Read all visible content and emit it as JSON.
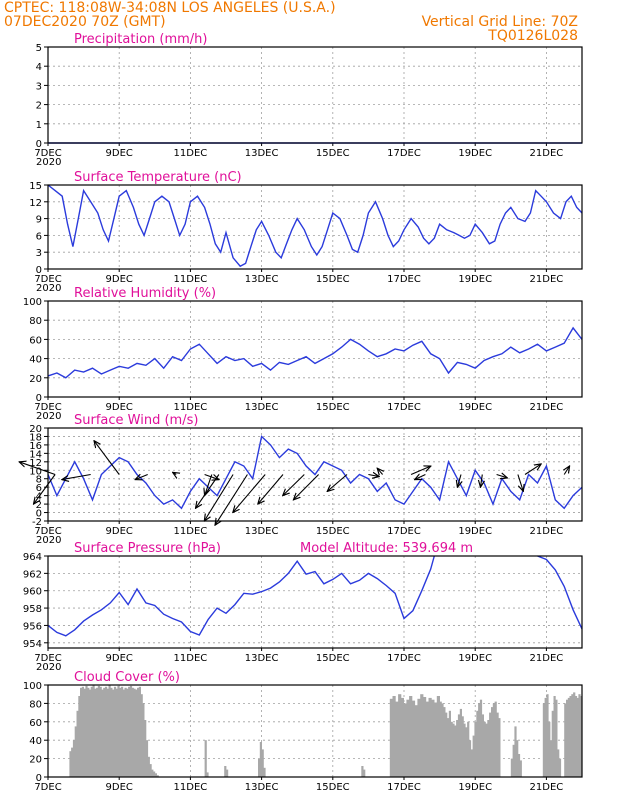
{
  "header": {
    "left_line1": "CPTEC:   118:08W-34:08N  LOS ANGELES (U.S.A.)",
    "left_line2": "07DEC2020 70Z (GMT)",
    "right_line1": "Vertical Grid Line: 70Z",
    "right_line2": "TQ0126L028"
  },
  "colors": {
    "header": "#f07800",
    "title": "#e0109a",
    "line": "#2b3bdc",
    "bar": "#a8a8a8",
    "arrow": "#000000"
  },
  "x_axis": {
    "day_start": 7,
    "day_end": 22,
    "tick_days": [
      7,
      9,
      11,
      13,
      15,
      17,
      19,
      21
    ],
    "tick_labels": [
      "7DEC",
      "9DEC",
      "11DEC",
      "13DEC",
      "15DEC",
      "17DEC",
      "19DEC",
      "21DEC"
    ],
    "year_label": "2020"
  },
  "chart_data": [
    {
      "id": "precip",
      "type": "line",
      "title": "Precipitation (mm/h)",
      "ylim": [
        0,
        5
      ],
      "yticks": [
        0,
        1,
        2,
        3,
        4,
        5
      ],
      "grid": true,
      "series": [
        {
          "x": [
            7,
            22
          ],
          "y": [
            0,
            0
          ]
        }
      ]
    },
    {
      "id": "temp",
      "type": "line",
      "title": "Surface Temperature (nC)",
      "ylim": [
        0,
        15
      ],
      "yticks": [
        0,
        3,
        6,
        9,
        12,
        15
      ],
      "grid": true,
      "series": [
        {
          "x": [
            7.0,
            7.2,
            7.4,
            7.55,
            7.7,
            7.85,
            8.0,
            8.2,
            8.4,
            8.55,
            8.7,
            8.85,
            9.0,
            9.2,
            9.4,
            9.55,
            9.7,
            9.85,
            10.0,
            10.2,
            10.4,
            10.55,
            10.7,
            10.85,
            11.0,
            11.2,
            11.4,
            11.55,
            11.7,
            11.85,
            12.0,
            12.2,
            12.4,
            12.55,
            12.7,
            12.85,
            13.0,
            13.2,
            13.4,
            13.55,
            13.7,
            13.85,
            14.0,
            14.2,
            14.4,
            14.55,
            14.7,
            14.85,
            15.0,
            15.2,
            15.4,
            15.55,
            15.7,
            15.85,
            16.0,
            16.2,
            16.4,
            16.55,
            16.7,
            16.85,
            17.0,
            17.2,
            17.4,
            17.55,
            17.7,
            17.85,
            18.0,
            18.2,
            18.4,
            18.55,
            18.7,
            18.85,
            19.0,
            19.2,
            19.4,
            19.55,
            19.7,
            19.85,
            20.0,
            20.2,
            20.4,
            20.55,
            20.7,
            20.85,
            21.0,
            21.2,
            21.4,
            21.55,
            21.7,
            21.85,
            22.0
          ],
          "y": [
            15,
            14,
            13,
            8,
            4,
            9,
            14,
            12,
            10,
            7,
            5,
            9,
            13,
            14,
            11,
            8,
            6,
            9,
            12,
            13,
            12,
            9,
            6,
            8,
            12,
            13,
            11,
            8,
            4.5,
            3,
            6.5,
            2,
            0.5,
            1,
            4,
            7,
            8.5,
            6,
            3,
            2,
            4.5,
            7,
            9,
            7,
            4,
            2.5,
            4,
            7,
            10,
            9,
            6,
            3.5,
            3,
            6,
            10,
            12,
            9,
            6,
            4,
            5,
            7,
            9,
            7.5,
            5.5,
            4.5,
            5.5,
            8,
            7,
            6.5,
            6,
            5.5,
            6,
            8,
            6.5,
            4.5,
            5,
            8,
            10,
            11,
            9,
            8.5,
            10,
            14,
            13,
            12,
            10,
            9,
            12,
            13,
            11,
            10
          ]
        }
      ]
    },
    {
      "id": "rh",
      "type": "line",
      "title": "Relative Humidity (%)",
      "ylim": [
        0,
        100
      ],
      "yticks": [
        0,
        20,
        40,
        60,
        80,
        100
      ],
      "grid": true,
      "series": [
        {
          "x": [
            7.0,
            7.25,
            7.5,
            7.75,
            8.0,
            8.25,
            8.5,
            8.75,
            9.0,
            9.25,
            9.5,
            9.75,
            10.0,
            10.25,
            10.5,
            10.75,
            11.0,
            11.25,
            11.5,
            11.75,
            12.0,
            12.25,
            12.5,
            12.75,
            13.0,
            13.25,
            13.5,
            13.75,
            14.0,
            14.25,
            14.5,
            14.75,
            15.0,
            15.25,
            15.5,
            15.75,
            16.0,
            16.25,
            16.5,
            16.75,
            17.0,
            17.25,
            17.5,
            17.75,
            18.0,
            18.25,
            18.5,
            18.75,
            19.0,
            19.25,
            19.5,
            19.75,
            20.0,
            20.25,
            20.5,
            20.75,
            21.0,
            21.25,
            21.5,
            21.75,
            22.0
          ],
          "y": [
            22,
            25,
            20,
            28,
            26,
            30,
            24,
            28,
            32,
            30,
            35,
            33,
            40,
            30,
            42,
            38,
            50,
            55,
            45,
            35,
            42,
            38,
            40,
            32,
            35,
            28,
            36,
            34,
            38,
            42,
            35,
            40,
            45,
            52,
            60,
            55,
            48,
            42,
            45,
            50,
            48,
            54,
            58,
            45,
            40,
            25,
            36,
            34,
            30,
            38,
            42,
            45,
            52,
            46,
            50,
            55,
            48,
            52,
            56,
            72,
            60
          ]
        }
      ]
    },
    {
      "id": "wind",
      "type": "line",
      "title": "Surface Wind (m/s)",
      "ylim": [
        -2,
        20
      ],
      "yticks": [
        -2,
        0,
        2,
        4,
        6,
        8,
        10,
        12,
        14,
        16,
        18,
        20
      ],
      "grid": true,
      "series": [
        {
          "x": [
            7.0,
            7.25,
            7.5,
            7.75,
            8.0,
            8.25,
            8.5,
            8.75,
            9.0,
            9.25,
            9.5,
            9.75,
            10.0,
            10.25,
            10.5,
            10.75,
            11.0,
            11.25,
            11.5,
            11.75,
            12.0,
            12.25,
            12.5,
            12.75,
            13.0,
            13.25,
            13.5,
            13.75,
            14.0,
            14.25,
            14.5,
            14.75,
            15.0,
            15.25,
            15.5,
            15.75,
            16.0,
            16.25,
            16.5,
            16.75,
            17.0,
            17.25,
            17.5,
            17.75,
            18.0,
            18.25,
            18.5,
            18.75,
            19.0,
            19.25,
            19.5,
            19.75,
            20.0,
            20.25,
            20.5,
            20.75,
            21.0,
            21.25,
            21.5,
            21.75,
            22.0
          ],
          "y": [
            9,
            4,
            8,
            12,
            8,
            3,
            9,
            11,
            13,
            12,
            9,
            7,
            4,
            2,
            3,
            1,
            5,
            8,
            6,
            4,
            8,
            12,
            11,
            8,
            18,
            16,
            13,
            15,
            14,
            11,
            9,
            12,
            11,
            10,
            7,
            9,
            8,
            5,
            7,
            3,
            2,
            5,
            8,
            6,
            3,
            12,
            8,
            4,
            10,
            7,
            2,
            8,
            5,
            3,
            9,
            7,
            11,
            3,
            1,
            4,
            6
          ]
        }
      ],
      "wind_vectors": [
        {
          "x": 7.2,
          "u": -1.2,
          "v": -7
        },
        {
          "x": 7.2,
          "u": -2,
          "v": 3
        },
        {
          "x": 8.2,
          "u": -1.6,
          "v": -1.2
        },
        {
          "x": 9.0,
          "u": -1.4,
          "v": 8
        },
        {
          "x": 9.8,
          "u": -0.7,
          "v": -1.2
        },
        {
          "x": 10.6,
          "u": -0.2,
          "v": 0.5
        },
        {
          "x": 11.4,
          "u": 0.8,
          "v": -1.2
        },
        {
          "x": 11.6,
          "u": -0.4,
          "v": -5
        },
        {
          "x": 11.8,
          "u": -1.3,
          "v": -8
        },
        {
          "x": 12.2,
          "u": -1.6,
          "v": -11
        },
        {
          "x": 12.6,
          "u": -1.8,
          "v": -12
        },
        {
          "x": 13.1,
          "u": -1.8,
          "v": -9
        },
        {
          "x": 13.6,
          "u": -1.4,
          "v": -7
        },
        {
          "x": 14.2,
          "u": -1.2,
          "v": -5
        },
        {
          "x": 14.6,
          "u": -1.4,
          "v": -6
        },
        {
          "x": 15.4,
          "u": -1.1,
          "v": -4
        },
        {
          "x": 16.0,
          "u": 0.6,
          "v": -0.5
        },
        {
          "x": 16.4,
          "u": -0.3,
          "v": 1.5
        },
        {
          "x": 17.2,
          "u": 1.1,
          "v": 2
        },
        {
          "x": 17.6,
          "u": -0.6,
          "v": -1.2
        },
        {
          "x": 18.6,
          "u": -0.2,
          "v": -3
        },
        {
          "x": 19.2,
          "u": -0.1,
          "v": -3
        },
        {
          "x": 19.6,
          "u": 0.6,
          "v": -0.8
        },
        {
          "x": 20.2,
          "u": 0.3,
          "v": -4
        },
        {
          "x": 20.4,
          "u": 0.9,
          "v": 2.5
        },
        {
          "x": 21.5,
          "u": 0.3,
          "v": 2
        }
      ]
    },
    {
      "id": "pressure",
      "type": "line",
      "title": "Surface Pressure (hPa)",
      "annotation": "Model Altitude: 539.694 m",
      "ylim": [
        953.4,
        964
      ],
      "yticks": [
        954,
        956,
        958,
        960,
        962,
        964
      ],
      "grid": true,
      "series": [
        {
          "x": [
            7.0,
            7.25,
            7.5,
            7.75,
            8.0,
            8.25,
            8.5,
            8.75,
            9.0,
            9.25,
            9.5,
            9.75,
            10.0,
            10.25,
            10.5,
            10.75,
            11.0,
            11.25,
            11.5,
            11.75,
            12.0,
            12.25,
            12.5,
            12.75,
            13.0,
            13.25,
            13.5,
            13.75,
            14.0,
            14.25,
            14.5,
            14.75,
            15.0,
            15.25,
            15.5,
            15.75,
            16.0,
            16.25,
            16.5,
            16.75,
            17.0,
            17.25,
            17.5,
            17.75,
            17.85
          ],
          "y": [
            956,
            955.2,
            954.8,
            955.5,
            956.5,
            957.2,
            957.8,
            958.6,
            959.8,
            958.4,
            960.2,
            958.6,
            958.3,
            957.3,
            956.8,
            956.4,
            955.3,
            954.9,
            956.7,
            958.0,
            957.4,
            958.4,
            959.7,
            959.6,
            959.9,
            960.3,
            961.0,
            962.0,
            963.4,
            961.9,
            962.2,
            960.8,
            961.3,
            962.0,
            960.8,
            961.2,
            962.0,
            961.4,
            960.6,
            959.7,
            956.8,
            957.7,
            960.0,
            962.5,
            964
          ]
        },
        {
          "x": [
            20.75,
            21.0,
            21.25,
            21.5,
            21.75,
            22.0
          ],
          "y": [
            964,
            963.6,
            962.4,
            960.5,
            957.8,
            955.6
          ]
        }
      ]
    },
    {
      "id": "cloud",
      "type": "bar",
      "title": "Cloud Cover (%)",
      "ylim": [
        0,
        100
      ],
      "yticks": [
        0,
        20,
        40,
        60,
        80,
        100
      ],
      "grid": true,
      "bar_step": 0.05,
      "segments": [
        {
          "x0": 7.6,
          "x1": 7.9,
          "values": [
            28,
            32,
            40,
            55,
            72,
            88
          ]
        },
        {
          "x0": 7.9,
          "x1": 9.6,
          "values": [
            97,
            98,
            96,
            99,
            97,
            95,
            98,
            100,
            96,
            97,
            99,
            98,
            95,
            97,
            98,
            96,
            100,
            97,
            95,
            98,
            96,
            99,
            97,
            98,
            95,
            97,
            96,
            98,
            99,
            97,
            96,
            95,
            97,
            98
          ]
        },
        {
          "x0": 9.6,
          "x1": 10.1,
          "values": [
            90,
            80,
            62,
            40,
            22,
            14,
            8,
            6,
            4,
            2
          ]
        },
        {
          "x0": 11.4,
          "x1": 11.5,
          "values": [
            40,
            5
          ]
        },
        {
          "x0": 11.95,
          "x1": 12.05,
          "values": [
            12,
            8
          ]
        },
        {
          "x0": 12.9,
          "x1": 13.1,
          "values": [
            20,
            38,
            30,
            10
          ]
        },
        {
          "x0": 15.8,
          "x1": 15.9,
          "values": [
            12,
            8
          ]
        },
        {
          "x0": 16.6,
          "x1": 18.0,
          "values": [
            85,
            88,
            82,
            90,
            86,
            80,
            84,
            88,
            83,
            78,
            85,
            90,
            87,
            82,
            86,
            84,
            81,
            88
          ]
        },
        {
          "x0": 18.0,
          "x1": 19.7,
          "values": [
            82,
            80,
            76,
            70,
            64,
            72,
            60,
            58,
            56,
            62,
            68,
            74,
            66,
            58,
            54,
            60,
            40,
            30,
            45,
            60,
            72,
            80,
            84,
            68,
            60,
            58,
            62,
            70,
            76,
            80,
            82,
            70,
            64
          ]
        },
        {
          "x0": 20.0,
          "x1": 20.3,
          "values": [
            20,
            35,
            55,
            40,
            25,
            18
          ]
        },
        {
          "x0": 20.9,
          "x1": 21.4,
          "values": [
            80,
            86,
            90,
            60,
            40,
            72,
            88,
            84,
            30,
            20
          ]
        },
        {
          "x0": 21.5,
          "x1": 22.0,
          "values": [
            80,
            84,
            86,
            88,
            90,
            92,
            88,
            86,
            90,
            88
          ]
        }
      ]
    }
  ]
}
